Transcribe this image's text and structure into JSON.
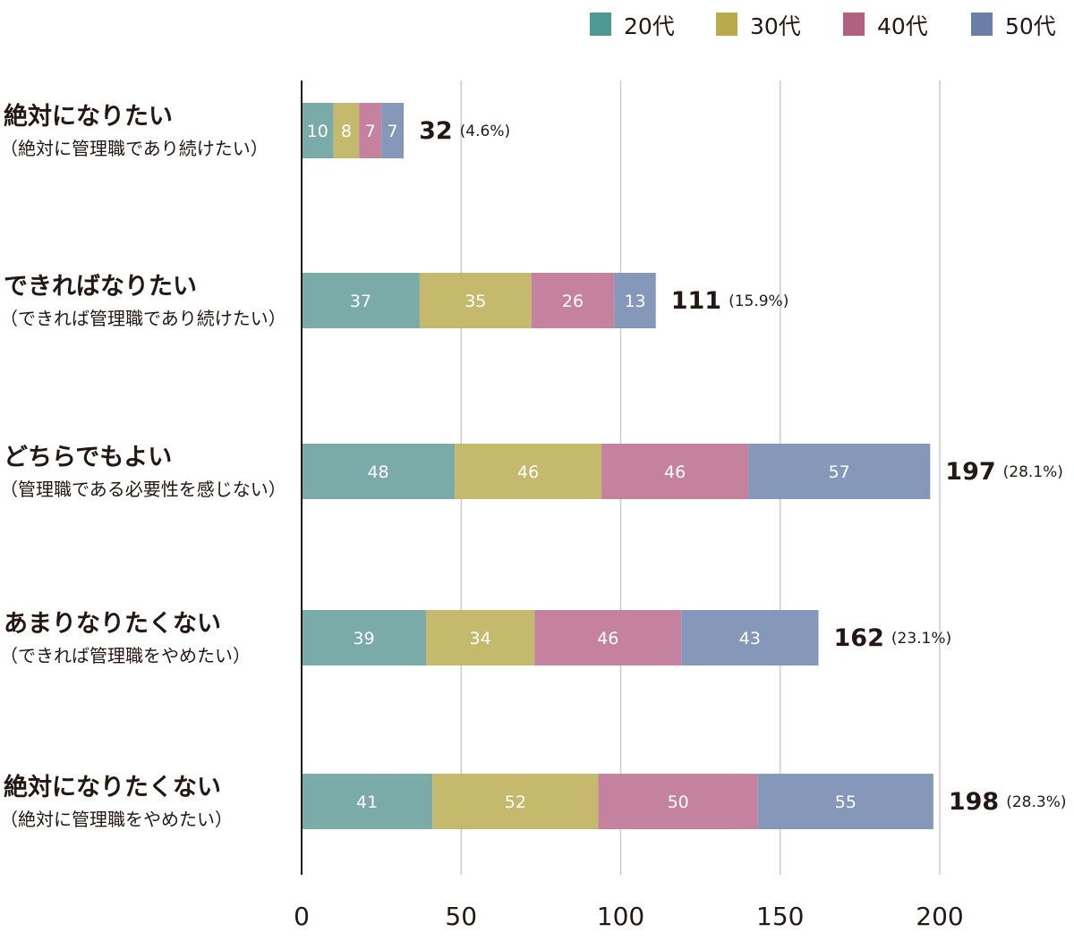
{
  "chart_data": {
    "type": "bar",
    "orientation": "horizontal",
    "stacked": true,
    "categories": [
      {
        "main": "絶対になりたい",
        "sub": "（絶対に管理職であり続けたい）"
      },
      {
        "main": "できればなりたい",
        "sub": "（できれば管理職であり続けたい）"
      },
      {
        "main": "どちらでもよい",
        "sub": "（管理職である必要性を感じない）"
      },
      {
        "main": "あまりなりたくない",
        "sub": "（できれば管理職をやめたい）"
      },
      {
        "main": "絶対になりたくない",
        "sub": "（絶対に管理職をやめたい）"
      }
    ],
    "series": [
      {
        "name": "20代",
        "color": "#7aaba8",
        "values": [
          10,
          37,
          48,
          39,
          41
        ]
      },
      {
        "name": "30代",
        "color": "#c5b96e",
        "values": [
          8,
          35,
          46,
          34,
          52
        ]
      },
      {
        "name": "40代",
        "color": "#c4829e",
        "values": [
          7,
          26,
          46,
          46,
          50
        ]
      },
      {
        "name": "50代",
        "color": "#8598b9",
        "values": [
          7,
          13,
          57,
          43,
          55
        ]
      }
    ],
    "totals": [
      "32",
      "111",
      "197",
      "162",
      "198"
    ],
    "percents": [
      "(4.6%)",
      "(15.9%)",
      "(28.1%)",
      "(23.1%)",
      "(28.3%)"
    ],
    "xlim": [
      0,
      200
    ],
    "xticks": [
      "0",
      "50",
      "100",
      "150",
      "200"
    ],
    "grid": true,
    "legend_position": "top-right",
    "legend_colors": [
      "#4f9995",
      "#b9aa4c",
      "#b2607f",
      "#6a7fa6"
    ]
  }
}
